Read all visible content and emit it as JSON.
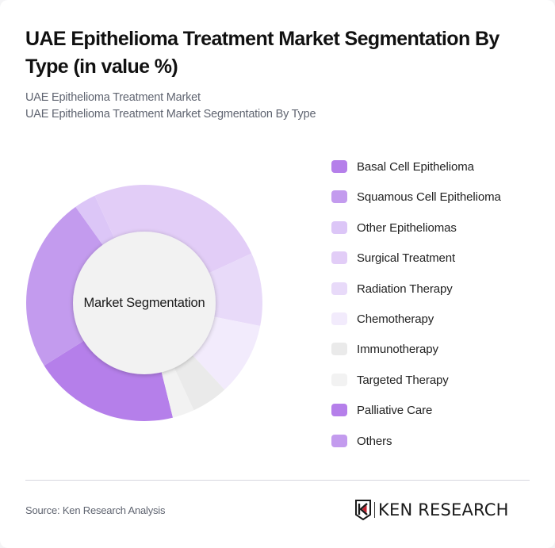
{
  "header": {
    "title": "UAE Epithelioma Treatment Market Segmentation By Type (in value %)",
    "subtitle_line1": "UAE Epithelioma Treatment Market",
    "subtitle_line2": "UAE Epithelioma Treatment Market Segmentation By Type"
  },
  "donut": {
    "center_label": "Market Segmentation"
  },
  "legend": {
    "items": [
      {
        "label": "Basal Cell Epithelioma",
        "color": "#B57FEA"
      },
      {
        "label": "Squamous Cell Epithelioma",
        "color": "#C39BEE"
      },
      {
        "label": "Other Epitheliomas",
        "color": "#DCC6F7"
      },
      {
        "label": "Surgical Treatment",
        "color": "#E2CDF7"
      },
      {
        "label": "Radiation Therapy",
        "color": "#E8DAF9"
      },
      {
        "label": "Chemotherapy",
        "color": "#F2EBFC"
      },
      {
        "label": "Immunotherapy",
        "color": "#EAEAEA"
      },
      {
        "label": "Targeted Therapy",
        "color": "#F2F2F2"
      },
      {
        "label": "Palliative Care",
        "color": "#B57FEA"
      },
      {
        "label": "Others",
        "color": "#C39BEE"
      }
    ]
  },
  "footer": {
    "source": "Source: Ken Research Analysis",
    "logo_text": "KEN RESEARCH"
  },
  "chart_data": {
    "type": "pie",
    "variant": "donut",
    "title": "UAE Epithelioma Treatment Market Segmentation By Type (in value %)",
    "subtitle": "UAE Epithelioma Treatment Market / UAE Epithelioma Treatment Market Segmentation By Type",
    "center_text": "Market Segmentation",
    "categories": [
      "Basal Cell Epithelioma",
      "Squamous Cell Epithelioma",
      "Other Epitheliomas",
      "Surgical Treatment",
      "Radiation Therapy",
      "Chemotherapy",
      "Immunotherapy",
      "Targeted Therapy",
      "Palliative Care",
      "Others"
    ],
    "values": [
      20,
      24,
      3,
      25,
      10,
      10,
      5,
      3,
      0,
      0
    ],
    "unit": "%",
    "colors": [
      "#B57FEA",
      "#C39BEE",
      "#DCC6F7",
      "#E2CDF7",
      "#E8DAF9",
      "#F2EBFC",
      "#EAEAEA",
      "#F2F2F2",
      "#B57FEA",
      "#C39BEE"
    ],
    "start_angle_deg": 166,
    "legend_position": "right",
    "source": "Source: Ken Research Analysis"
  }
}
